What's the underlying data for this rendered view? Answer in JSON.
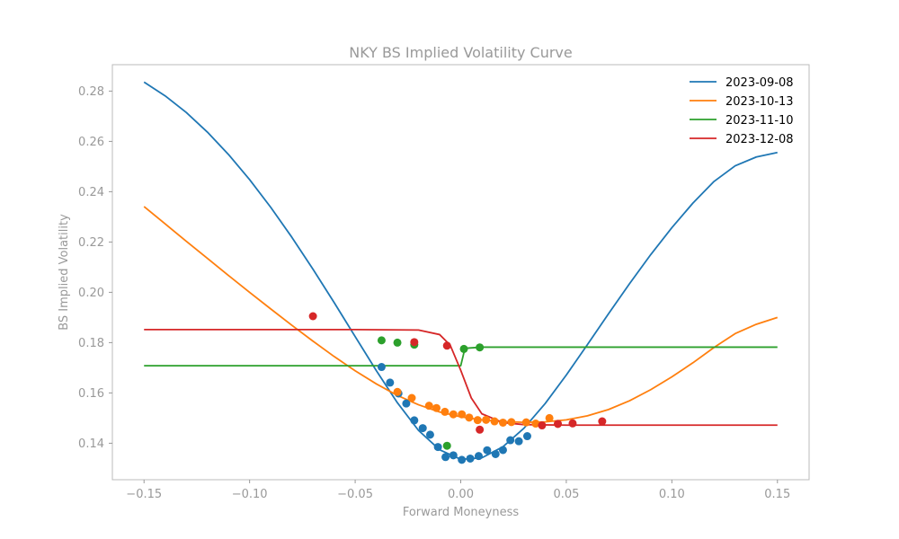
{
  "chart_data": {
    "type": "line",
    "title": "NKY BS Implied Volatility Curve",
    "xlabel": "Forward Moneyness",
    "ylabel": "BS Implied Volatility",
    "xlim": [
      -0.165,
      0.165
    ],
    "ylim": [
      0.1255,
      0.2905
    ],
    "x_ticks": [
      -0.15,
      -0.1,
      -0.05,
      0.0,
      0.05,
      0.1,
      0.15
    ],
    "x_tick_labels": [
      "−0.15",
      "−0.10",
      "−0.05",
      "0.00",
      "0.05",
      "0.10",
      "0.15"
    ],
    "y_ticks": [
      0.14,
      0.16,
      0.18,
      0.2,
      0.22,
      0.24,
      0.26,
      0.28
    ],
    "y_tick_labels": [
      "0.14",
      "0.16",
      "0.18",
      "0.20",
      "0.22",
      "0.24",
      "0.26",
      "0.28"
    ],
    "grid": false,
    "legend_position": "top-right",
    "series": [
      {
        "name": "2023-09-08",
        "color": "#1f77b4",
        "curve": [
          [
            -0.15,
            0.2836
          ],
          [
            -0.14,
            0.2781
          ],
          [
            -0.13,
            0.2715
          ],
          [
            -0.12,
            0.2637
          ],
          [
            -0.11,
            0.2548
          ],
          [
            -0.1,
            0.2448
          ],
          [
            -0.09,
            0.2338
          ],
          [
            -0.08,
            0.2219
          ],
          [
            -0.07,
            0.2092
          ],
          [
            -0.06,
            0.196
          ],
          [
            -0.05,
            0.1824
          ],
          [
            -0.04,
            0.1689
          ],
          [
            -0.03,
            0.1561
          ],
          [
            -0.02,
            0.1451
          ],
          [
            -0.01,
            0.1374
          ],
          [
            0.0,
            0.1336
          ],
          [
            0.01,
            0.1342
          ],
          [
            0.02,
            0.1386
          ],
          [
            0.03,
            0.146
          ],
          [
            0.04,
            0.1558
          ],
          [
            0.05,
            0.1671
          ],
          [
            0.06,
            0.1792
          ],
          [
            0.07,
            0.1915
          ],
          [
            0.08,
            0.2035
          ],
          [
            0.09,
            0.215
          ],
          [
            0.1,
            0.2257
          ],
          [
            0.11,
            0.2355
          ],
          [
            0.12,
            0.2441
          ],
          [
            0.13,
            0.2503
          ],
          [
            0.14,
            0.2538
          ],
          [
            0.15,
            0.2556
          ]
        ],
        "points": [
          [
            -0.0375,
            0.1703
          ],
          [
            -0.0335,
            0.1641
          ],
          [
            -0.0295,
            0.1598
          ],
          [
            -0.0258,
            0.1558
          ],
          [
            -0.022,
            0.1491
          ],
          [
            -0.018,
            0.146
          ],
          [
            -0.0145,
            0.1434
          ],
          [
            -0.0108,
            0.1385
          ],
          [
            -0.0072,
            0.1345
          ],
          [
            -0.0035,
            0.1352
          ],
          [
            0.0005,
            0.1334
          ],
          [
            0.0045,
            0.1339
          ],
          [
            0.0085,
            0.1349
          ],
          [
            0.0125,
            0.1372
          ],
          [
            0.0165,
            0.1357
          ],
          [
            0.02,
            0.1373
          ],
          [
            0.0235,
            0.1412
          ],
          [
            0.0275,
            0.1408
          ],
          [
            0.0315,
            0.1428
          ]
        ]
      },
      {
        "name": "2023-10-13",
        "color": "#ff7f0e",
        "curve": [
          [
            -0.15,
            0.2341
          ],
          [
            -0.14,
            0.2272
          ],
          [
            -0.13,
            0.2203
          ],
          [
            -0.12,
            0.2135
          ],
          [
            -0.11,
            0.2067
          ],
          [
            -0.1,
            0.2
          ],
          [
            -0.09,
            0.1934
          ],
          [
            -0.08,
            0.1869
          ],
          [
            -0.07,
            0.1806
          ],
          [
            -0.06,
            0.1745
          ],
          [
            -0.05,
            0.1688
          ],
          [
            -0.04,
            0.1636
          ],
          [
            -0.03,
            0.159
          ],
          [
            -0.02,
            0.1553
          ],
          [
            -0.01,
            0.1524
          ],
          [
            0.0,
            0.1505
          ],
          [
            0.01,
            0.1493
          ],
          [
            0.02,
            0.1486
          ],
          [
            0.03,
            0.1483
          ],
          [
            0.04,
            0.1485
          ],
          [
            0.05,
            0.1493
          ],
          [
            0.06,
            0.1509
          ],
          [
            0.07,
            0.1534
          ],
          [
            0.08,
            0.1569
          ],
          [
            0.09,
            0.1613
          ],
          [
            0.1,
            0.1664
          ],
          [
            0.11,
            0.172
          ],
          [
            0.12,
            0.1781
          ],
          [
            0.13,
            0.1836
          ],
          [
            0.14,
            0.1873
          ],
          [
            0.15,
            0.19
          ]
        ],
        "points": [
          [
            -0.03,
            0.1604
          ],
          [
            -0.0232,
            0.158
          ],
          [
            -0.015,
            0.1549
          ],
          [
            -0.0115,
            0.154
          ],
          [
            -0.0075,
            0.1525
          ],
          [
            -0.0035,
            0.1515
          ],
          [
            0.0005,
            0.1515
          ],
          [
            0.004,
            0.1502
          ],
          [
            0.008,
            0.1492
          ],
          [
            0.012,
            0.1493
          ],
          [
            0.016,
            0.1487
          ],
          [
            0.02,
            0.1482
          ],
          [
            0.024,
            0.1484
          ],
          [
            0.031,
            0.1483
          ],
          [
            0.0355,
            0.1478
          ],
          [
            0.042,
            0.15
          ],
          [
            0.046,
            0.1477
          ]
        ]
      },
      {
        "name": "2023-11-10",
        "color": "#2ca02c",
        "curve": [
          [
            -0.15,
            0.1708
          ],
          [
            -0.1,
            0.1708
          ],
          [
            -0.05,
            0.1708
          ],
          [
            -0.01,
            0.1708
          ],
          [
            0.0,
            0.1708
          ],
          [
            0.0015,
            0.176
          ],
          [
            0.003,
            0.1778
          ],
          [
            0.01,
            0.1782
          ],
          [
            0.05,
            0.1782
          ],
          [
            0.1,
            0.1782
          ],
          [
            0.15,
            0.1782
          ]
        ],
        "points": [
          [
            -0.0375,
            0.1809
          ],
          [
            -0.03,
            0.18
          ],
          [
            -0.022,
            0.1792
          ],
          [
            -0.0065,
            0.139
          ],
          [
            0.0015,
            0.1775
          ],
          [
            0.009,
            0.1781
          ]
        ]
      },
      {
        "name": "2023-12-08",
        "color": "#d62728",
        "curve": [
          [
            -0.15,
            0.1852
          ],
          [
            -0.1,
            0.1852
          ],
          [
            -0.05,
            0.1852
          ],
          [
            -0.02,
            0.185
          ],
          [
            -0.01,
            0.1832
          ],
          [
            -0.005,
            0.179
          ],
          [
            0.0,
            0.169
          ],
          [
            0.005,
            0.158
          ],
          [
            0.01,
            0.1517
          ],
          [
            0.02,
            0.1482
          ],
          [
            0.03,
            0.1474
          ],
          [
            0.05,
            0.1472
          ],
          [
            0.1,
            0.1472
          ],
          [
            0.15,
            0.1472
          ]
        ],
        "points": [
          [
            -0.07,
            0.1905
          ],
          [
            -0.022,
            0.1802
          ],
          [
            -0.0065,
            0.1788
          ],
          [
            0.009,
            0.1454
          ],
          [
            0.0385,
            0.1471
          ],
          [
            0.046,
            0.1477
          ],
          [
            0.053,
            0.1479
          ],
          [
            0.067,
            0.1487
          ]
        ]
      }
    ]
  }
}
